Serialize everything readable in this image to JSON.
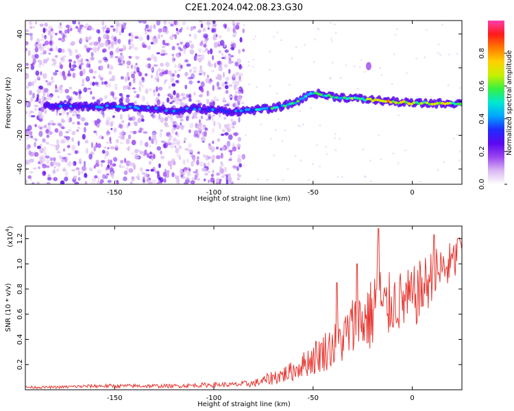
{
  "title": "C2E1.2024.042.08.23.G30",
  "colors": {
    "snr_line": "#e8342e",
    "frame": "#000000",
    "background": "#ffffff",
    "colormap": [
      "#ffffff",
      "#d9b8f2",
      "#9b45f0",
      "#5a08f0",
      "#1f2bff",
      "#00a6ff",
      "#00e8d0",
      "#38f040",
      "#c8f000",
      "#ffd000",
      "#ff7a00",
      "#ff1a1a",
      "#ff3fb0"
    ]
  },
  "chart_data": [
    {
      "type": "heatmap",
      "xlabel": "Height of straight line (km)",
      "ylabel": "Frequency (Hz)",
      "xlim": [
        -195,
        25
      ],
      "ylim": [
        -49,
        48
      ],
      "xticks": [
        -150,
        -100,
        -50,
        0
      ],
      "yticks": [
        -40,
        -20,
        0,
        20,
        40
      ],
      "colorbar": {
        "label": "Normalized spectral amplitude",
        "range": [
          0,
          1
        ],
        "ticks": [
          "0.0",
          "0.2",
          "0.4",
          "0.6",
          "0.8"
        ],
        "tick_values": [
          0,
          0.2,
          0.4,
          0.6,
          0.8
        ]
      },
      "ridge": {
        "x": [
          -185,
          -170,
          -150,
          -130,
          -120,
          -110,
          -100,
          -90,
          -80,
          -70,
          -60,
          -50,
          -40,
          -30,
          -20,
          -10,
          0,
          10,
          20,
          25
        ],
        "frequency": [
          -2,
          -3,
          -3,
          -4,
          -6,
          -4,
          -5,
          -6,
          -5,
          -4,
          -1,
          5,
          3,
          2,
          1,
          0,
          -1,
          -1,
          -1,
          -1
        ],
        "amplitude": [
          0.3,
          0.3,
          0.35,
          0.3,
          0.3,
          0.35,
          0.3,
          0.35,
          0.4,
          0.45,
          0.5,
          0.5,
          0.5,
          0.55,
          0.6,
          0.75,
          0.6,
          0.7,
          0.6,
          0.6
        ]
      },
      "side_feature": {
        "x": -22,
        "frequency": 21,
        "amplitude": 0.2
      }
    },
    {
      "type": "line",
      "xlabel": "Height of straight line (km)",
      "ylabel": "SNR (10 * v/v)",
      "y_multiplier": "(x10",
      "y_multiplier_exponent": "4",
      "y_multiplier_close": ")",
      "xlim": [
        -195,
        25
      ],
      "ylim": [
        0,
        1.3
      ],
      "xticks": [
        -150,
        -100,
        -50,
        0
      ],
      "yticks": [
        0.2,
        0.4,
        0.6,
        0.8,
        1.0,
        1.2
      ],
      "ytick_labels": [
        "0.2",
        "0.4",
        "0.6",
        "0.8",
        "1.0",
        "1.2"
      ],
      "series": [
        {
          "x": [
            -195,
            -180,
            -160,
            -140,
            -120,
            -100,
            -90,
            -80,
            -75,
            -70,
            -65,
            -60,
            -55,
            -50,
            -45,
            -40,
            -35,
            -30,
            -25,
            -20,
            -17,
            -15,
            -10,
            -5,
            0,
            5,
            10,
            15,
            20,
            25
          ],
          "values": [
            0.02,
            0.02,
            0.03,
            0.03,
            0.03,
            0.04,
            0.04,
            0.05,
            0.07,
            0.1,
            0.12,
            0.15,
            0.2,
            0.25,
            0.3,
            0.35,
            0.4,
            0.5,
            0.55,
            0.6,
            0.85,
            0.6,
            0.7,
            0.7,
            0.72,
            0.8,
            0.9,
            0.95,
            1.0,
            1.1
          ],
          "noise": [
            0.01,
            0.01,
            0.015,
            0.015,
            0.015,
            0.02,
            0.02,
            0.03,
            0.04,
            0.06,
            0.07,
            0.08,
            0.1,
            0.14,
            0.16,
            0.18,
            0.2,
            0.25,
            0.28,
            0.3,
            0.4,
            0.3,
            0.25,
            0.25,
            0.25,
            0.25,
            0.22,
            0.2,
            0.18,
            0.15
          ],
          "peaks": [
            {
              "x": -17,
              "y": 1.28
            },
            {
              "x": 11,
              "y": 1.23
            },
            {
              "x": 23,
              "y": 1.2
            },
            {
              "x": -28,
              "y": 1.0
            },
            {
              "x": -38,
              "y": 0.85
            }
          ]
        }
      ]
    }
  ]
}
